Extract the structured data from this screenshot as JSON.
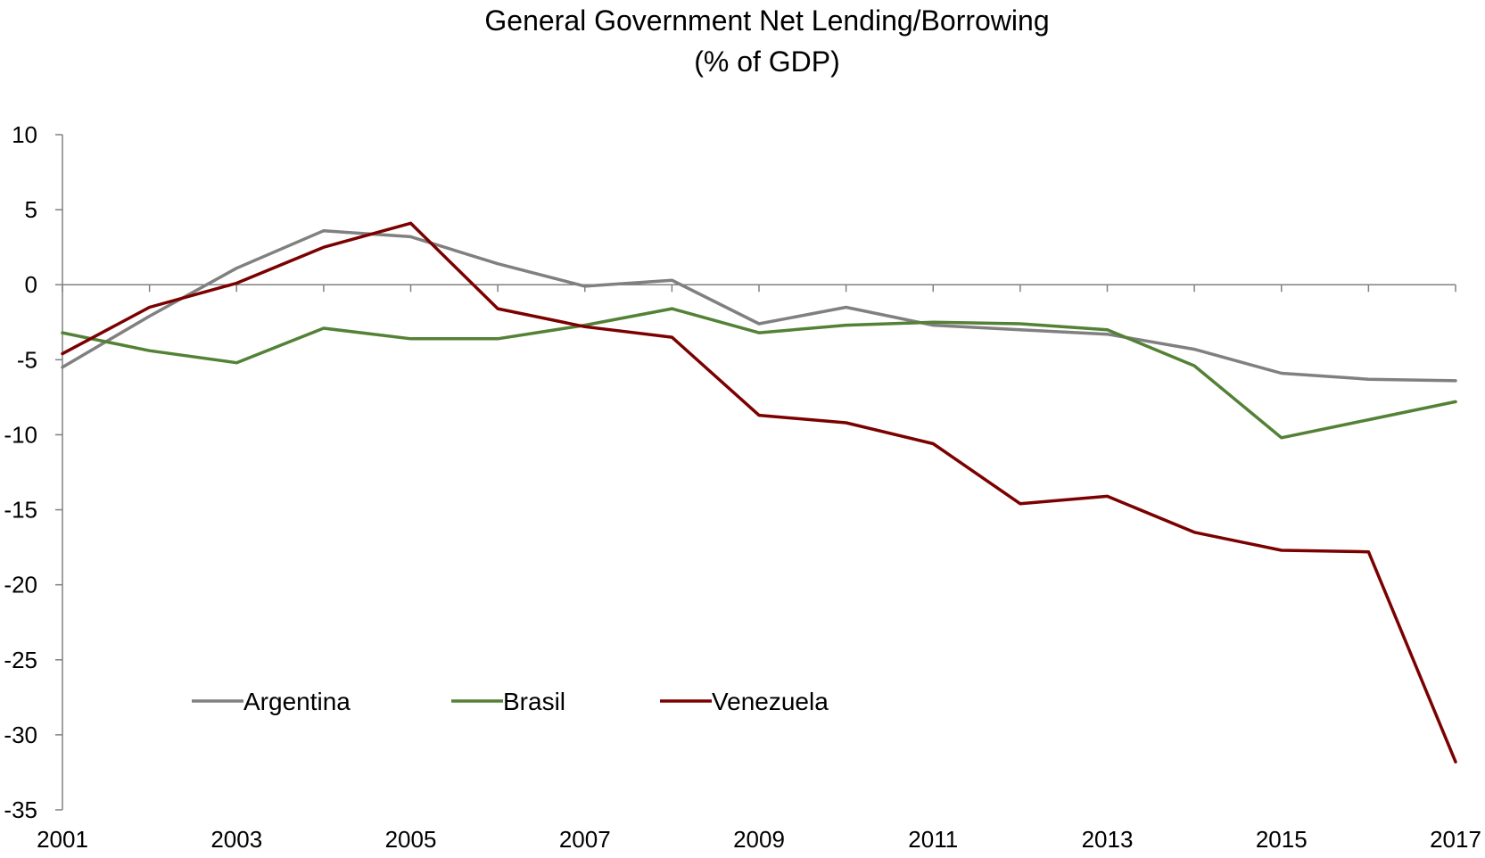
{
  "chart_data": {
    "type": "line",
    "title": "General Government Net Lending/Borrowing",
    "subtitle": "(% of GDP)",
    "xlabel": "",
    "ylabel": "",
    "x": [
      2001,
      2002,
      2003,
      2004,
      2005,
      2006,
      2007,
      2008,
      2009,
      2010,
      2011,
      2012,
      2013,
      2014,
      2015,
      2016,
      2017
    ],
    "x_tick_labels": [
      "2001",
      "2003",
      "2005",
      "2007",
      "2009",
      "2011",
      "2013",
      "2015",
      "2017"
    ],
    "y_tick_labels": [
      "10",
      "5",
      "0",
      "-5",
      "-10",
      "-15",
      "-20",
      "-25",
      "-30",
      "-35"
    ],
    "ylim": [
      -35,
      10
    ],
    "xlim": [
      2001,
      2017
    ],
    "grid": false,
    "legend_position": "bottom-left",
    "series": [
      {
        "name": "Argentina",
        "color": "#808080",
        "values": [
          -5.5,
          -2.1,
          1.1,
          3.6,
          3.2,
          1.4,
          -0.1,
          0.3,
          -2.6,
          -1.5,
          -2.7,
          -3.0,
          -3.3,
          -4.3,
          -5.9,
          -6.3,
          -6.4
        ]
      },
      {
        "name": "Brasil",
        "color": "#538135",
        "values": [
          -3.2,
          -4.4,
          -5.2,
          -2.9,
          -3.6,
          -3.6,
          -2.7,
          -1.6,
          -3.2,
          -2.7,
          -2.5,
          -2.6,
          -3.0,
          -5.4,
          -10.2,
          -9.0,
          -7.8
        ]
      },
      {
        "name": "Venezuela",
        "color": "#7b0000",
        "values": [
          -4.6,
          -1.5,
          0.1,
          2.5,
          4.1,
          -1.6,
          -2.8,
          -3.5,
          -8.7,
          -9.2,
          -10.6,
          -14.6,
          -14.1,
          -16.5,
          -17.7,
          -17.8,
          -31.8
        ]
      }
    ]
  }
}
